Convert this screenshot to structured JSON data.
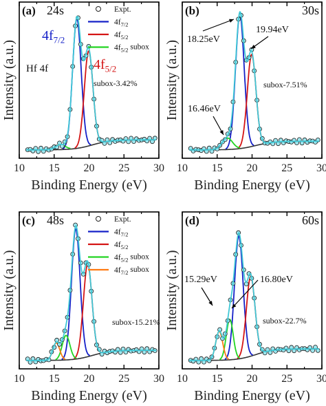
{
  "figure": {
    "colors": {
      "expt_marker_edge": "#1a1a1a",
      "expt_marker_fill": "#9fe6ee",
      "envelope": "#40c8d6",
      "4f72": "#1420c8",
      "4f52": "#d41414",
      "4f52_subox": "#22d422",
      "4f72_subox": "#ff7a12",
      "background": "#333333",
      "arrow": "#000000"
    }
  },
  "chart_data": [
    {
      "type": "line",
      "panel_letter": "(a)",
      "time": "24s",
      "xlabel": "Binding Energy (eV)",
      "ylabel": "Intensity (a.u.)",
      "xlim": [
        10,
        30
      ],
      "xticks": [
        "10",
        "15",
        "20",
        "25",
        "30"
      ],
      "y_ticks_shown": false,
      "grid": false,
      "legend_position": "top-right",
      "legend": [
        {
          "series": "expt",
          "label": "Expt.",
          "sub": ""
        },
        {
          "series": "4f72",
          "label": "4f",
          "sub": "7/2"
        },
        {
          "series": "4f52",
          "label": "4f",
          "sub": "5/2"
        },
        {
          "series": "4f52_subox",
          "label": "4f",
          "sub": "5/2",
          "suffix": " subox"
        }
      ],
      "annotations": [
        {
          "kind": "peak",
          "text": "4f",
          "sub": "7/2",
          "color": "#1420c8"
        },
        {
          "kind": "peak",
          "text": "4f",
          "sub": "5/2",
          "color": "#d41414"
        },
        {
          "kind": "label",
          "text": "Hf 4f"
        },
        {
          "kind": "subox",
          "text": "subox-3.42%"
        }
      ],
      "background": {
        "y_low": 0.02,
        "y_high": 0.09,
        "x_center": 20.5
      },
      "series": [
        {
          "key": "4f72",
          "center": 18.25,
          "height": 0.9,
          "sigma": 0.62
        },
        {
          "key": "4f52",
          "center": 19.94,
          "height": 0.66,
          "sigma": 0.62
        },
        {
          "key": "4f52_subox",
          "center": 15.9,
          "height": 0.035,
          "sigma": 0.7
        }
      ]
    },
    {
      "type": "line",
      "panel_letter": "(b)",
      "time": "30s",
      "xlabel": "Binding Energy (eV)",
      "ylabel": "Intensity (a.u.)",
      "xlim": [
        10,
        30
      ],
      "xticks": [
        "10",
        "15",
        "20",
        "25",
        "30"
      ],
      "y_ticks_shown": false,
      "grid": false,
      "legend": [],
      "annotations": [
        {
          "kind": "energy",
          "text": "18.25eV"
        },
        {
          "kind": "energy",
          "text": "19.94eV"
        },
        {
          "kind": "energy",
          "text": "16.46eV"
        },
        {
          "kind": "subox",
          "text": "subox-7.51%"
        }
      ],
      "background": {
        "y_low": 0.02,
        "y_high": 0.08,
        "x_center": 20.5
      },
      "series": [
        {
          "key": "4f72",
          "center": 18.25,
          "height": 0.93,
          "sigma": 0.62
        },
        {
          "key": "4f52",
          "center": 19.94,
          "height": 0.64,
          "sigma": 0.62
        },
        {
          "key": "4f52_subox",
          "center": 16.46,
          "height": 0.08,
          "sigma": 0.75
        }
      ]
    },
    {
      "type": "line",
      "panel_letter": "(c)",
      "time": "48s",
      "xlabel": "Binding Energy (eV)",
      "ylabel": "Intensity (a.u.)",
      "xlim": [
        10,
        30
      ],
      "xticks": [
        "10",
        "15",
        "20",
        "25",
        "30"
      ],
      "y_ticks_shown": false,
      "grid": false,
      "legend_position": "top-right",
      "legend": [
        {
          "series": "expt",
          "label": "Expt.",
          "sub": ""
        },
        {
          "series": "4f72",
          "label": "4f",
          "sub": "7/2"
        },
        {
          "series": "4f52",
          "label": "4f",
          "sub": "5/2"
        },
        {
          "series": "4f52_subox",
          "label": "4f",
          "sub": "5/2",
          "suffix": " subox"
        },
        {
          "series": "4f72_subox",
          "label": "4f",
          "sub": "7/2",
          "suffix": " subox"
        }
      ],
      "annotations": [
        {
          "kind": "subox",
          "text": "subox-15.21%"
        }
      ],
      "background": {
        "y_low": 0.02,
        "y_high": 0.09,
        "x_center": 20.5
      },
      "series": [
        {
          "key": "4f72",
          "center": 18.1,
          "height": 0.9,
          "sigma": 0.62
        },
        {
          "key": "4f52",
          "center": 19.8,
          "height": 0.64,
          "sigma": 0.62
        },
        {
          "key": "4f52_subox",
          "center": 16.7,
          "height": 0.17,
          "sigma": 0.55
        },
        {
          "key": "4f72_subox",
          "center": 15.3,
          "height": 0.12,
          "sigma": 0.5
        }
      ]
    },
    {
      "type": "line",
      "panel_letter": "(d)",
      "time": "60s",
      "xlabel": "Binding Energy (eV)",
      "ylabel": "Intensity (a.u.)",
      "xlim": [
        10,
        30
      ],
      "xticks": [
        "10",
        "15",
        "20",
        "25",
        "30"
      ],
      "y_ticks_shown": false,
      "grid": false,
      "legend": [],
      "annotations": [
        {
          "kind": "energy",
          "text": "15.29eV"
        },
        {
          "kind": "energy",
          "text": "16.80eV"
        },
        {
          "kind": "subox",
          "text": "subox-22.7%"
        }
      ],
      "background": {
        "y_low": 0.02,
        "y_high": 0.1,
        "x_center": 20.5
      },
      "series": [
        {
          "key": "4f72",
          "center": 18.1,
          "height": 0.85,
          "sigma": 0.62
        },
        {
          "key": "4f52",
          "center": 19.8,
          "height": 0.55,
          "sigma": 0.62
        },
        {
          "key": "4f52_subox",
          "center": 16.8,
          "height": 0.28,
          "sigma": 0.5
        },
        {
          "key": "4f72_subox",
          "center": 15.29,
          "height": 0.2,
          "sigma": 0.5
        }
      ]
    }
  ]
}
